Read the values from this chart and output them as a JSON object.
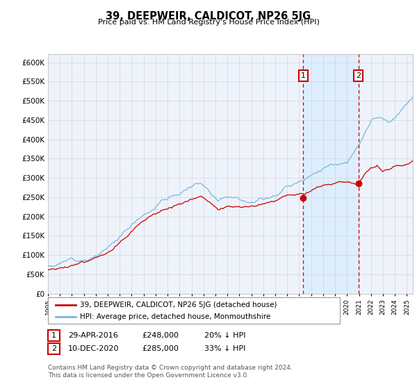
{
  "title": "39, DEEPWEIR, CALDICOT, NP26 5JG",
  "subtitle": "Price paid vs. HM Land Registry's House Price Index (HPI)",
  "ylim": [
    0,
    620000
  ],
  "yticks": [
    0,
    50000,
    100000,
    150000,
    200000,
    250000,
    300000,
    350000,
    400000,
    450000,
    500000,
    550000,
    600000
  ],
  "xlim_start": 1995.0,
  "xlim_end": 2025.5,
  "hpi_color": "#7ab8d9",
  "price_color": "#cc0000",
  "shade_color": "#ddeeff",
  "marker1_date": 2016.33,
  "marker1_price": 248000,
  "marker2_date": 2020.95,
  "marker2_price": 285000,
  "legend_line1": "39, DEEPWEIR, CALDICOT, NP26 5JG (detached house)",
  "legend_line2": "HPI: Average price, detached house, Monmouthshire",
  "m1_text": "29-APR-2016",
  "m1_value": "£248,000",
  "m1_hpi": "20% ↓ HPI",
  "m2_text": "10-DEC-2020",
  "m2_value": "£285,000",
  "m2_hpi": "33% ↓ HPI",
  "footer": "Contains HM Land Registry data © Crown copyright and database right 2024.\nThis data is licensed under the Open Government Licence v3.0.",
  "background_color": "#eef3fb"
}
